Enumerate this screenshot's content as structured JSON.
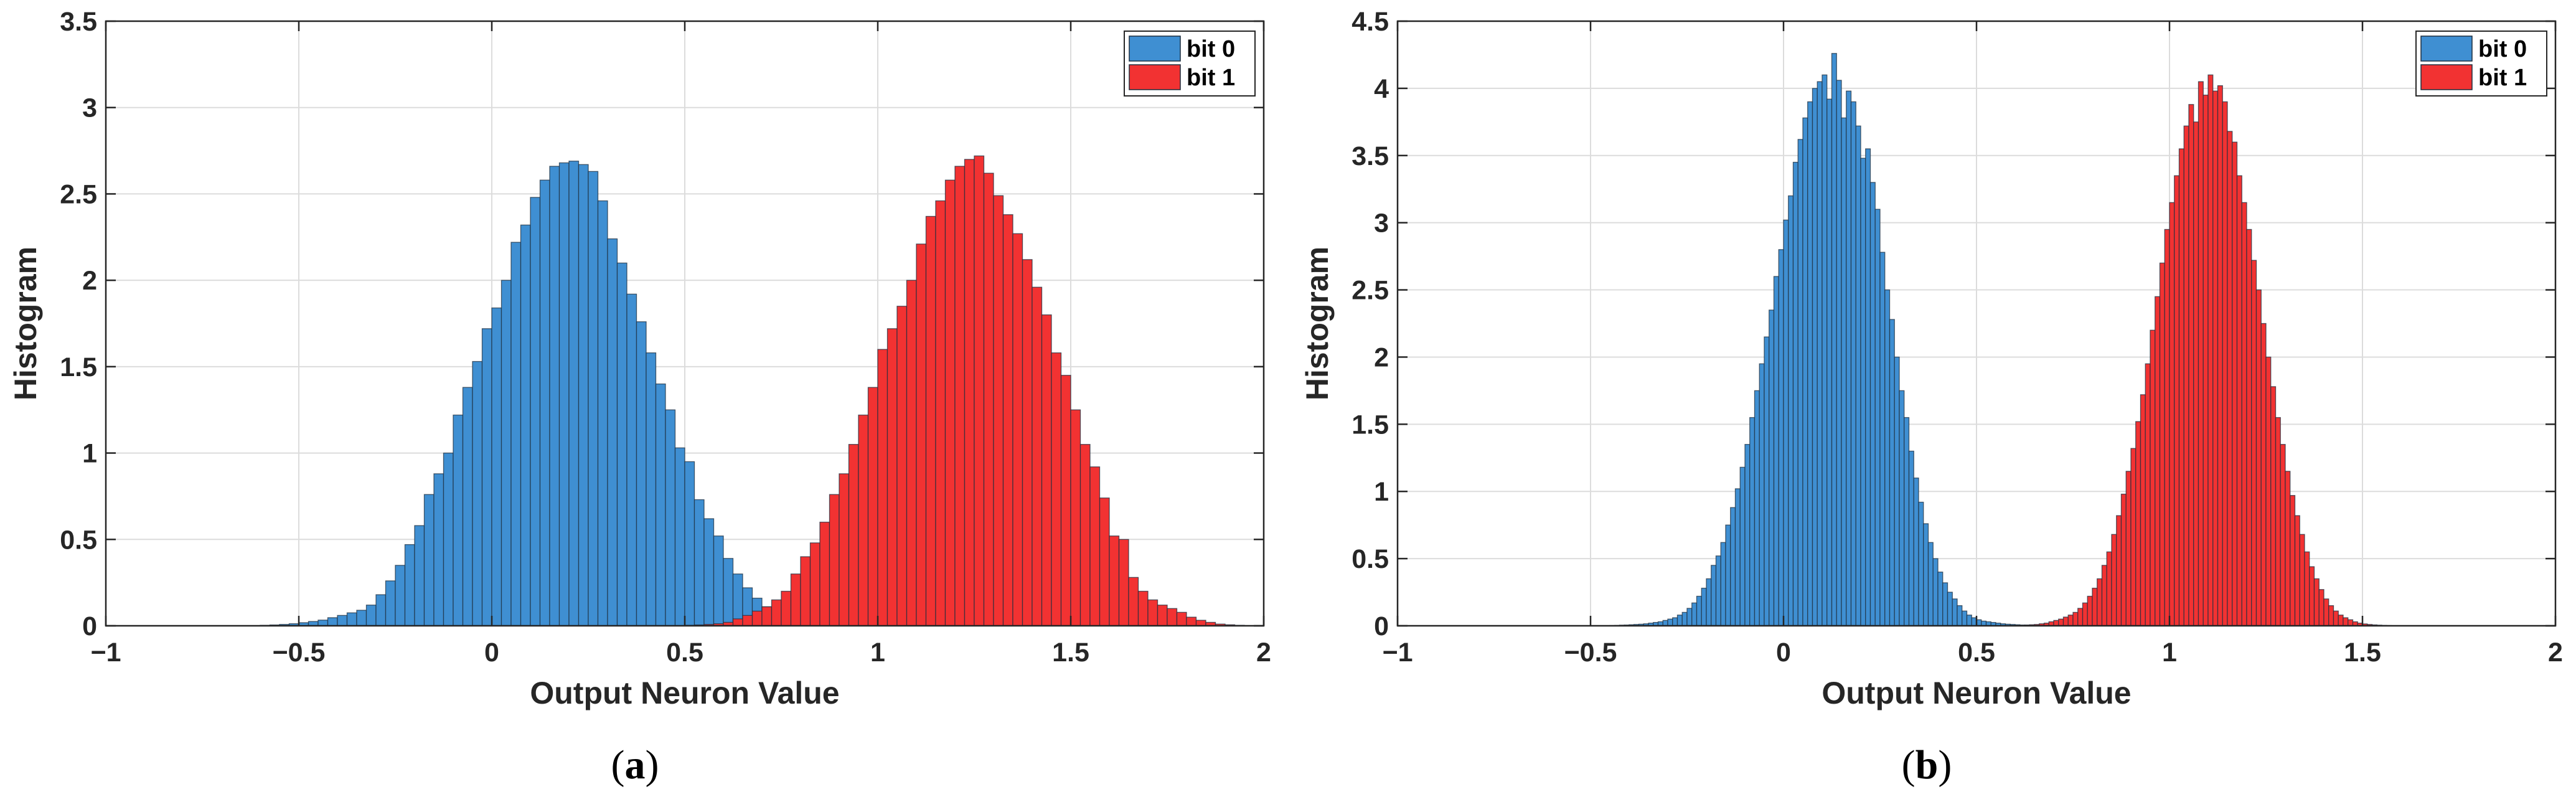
{
  "chart_data": [
    {
      "type": "bar",
      "panel": "a",
      "caption_letter": "a",
      "xlabel": "Output Neuron Value",
      "ylabel": "Histogram",
      "xlim": [
        -1,
        2
      ],
      "ylim": [
        0,
        3.5
      ],
      "xticks": [
        -1,
        -0.5,
        0,
        0.5,
        1,
        1.5,
        2
      ],
      "xtick_labels": [
        "−1",
        "−0.5",
        "0",
        "0.5",
        "1",
        "1.5",
        "2"
      ],
      "yticks": [
        0,
        0.5,
        1,
        1.5,
        2,
        2.5,
        3,
        3.5
      ],
      "ytick_labels": [
        "0",
        "0.5",
        "1",
        "1.5",
        "2",
        "2.5",
        "3",
        "3.5"
      ],
      "grid": true,
      "legend_position": "top-right",
      "bin_width": 0.025,
      "series": [
        {
          "name": "bit 0",
          "color": "#3f8fd2",
          "bin_start": -0.6,
          "values": [
            0.003,
            0.005,
            0.008,
            0.012,
            0.018,
            0.025,
            0.033,
            0.047,
            0.06,
            0.075,
            0.09,
            0.12,
            0.18,
            0.26,
            0.35,
            0.47,
            0.58,
            0.76,
            0.88,
            1.0,
            1.22,
            1.38,
            1.53,
            1.72,
            1.84,
            2.0,
            2.22,
            2.32,
            2.48,
            2.58,
            2.66,
            2.68,
            2.69,
            2.67,
            2.63,
            2.46,
            2.24,
            2.1,
            1.92,
            1.76,
            1.58,
            1.4,
            1.25,
            1.03,
            0.95,
            0.73,
            0.62,
            0.52,
            0.39,
            0.3,
            0.22,
            0.16,
            0.11,
            0.075,
            0.05,
            0.04,
            0.03,
            0.018,
            0.01,
            0.006,
            0.003
          ]
        },
        {
          "name": "bit 1",
          "color": "#f23232",
          "bin_start": 0.5,
          "values": [
            0.003,
            0.005,
            0.008,
            0.012,
            0.02,
            0.04,
            0.06,
            0.085,
            0.11,
            0.15,
            0.2,
            0.3,
            0.4,
            0.48,
            0.6,
            0.76,
            0.88,
            1.05,
            1.22,
            1.38,
            1.6,
            1.72,
            1.85,
            2.0,
            2.21,
            2.37,
            2.46,
            2.58,
            2.66,
            2.7,
            2.72,
            2.62,
            2.49,
            2.38,
            2.27,
            2.12,
            1.96,
            1.8,
            1.58,
            1.45,
            1.25,
            1.05,
            0.92,
            0.74,
            0.52,
            0.5,
            0.28,
            0.2,
            0.15,
            0.12,
            0.1,
            0.078,
            0.05,
            0.032,
            0.02,
            0.01,
            0.006,
            0.003
          ]
        }
      ]
    },
    {
      "type": "bar",
      "panel": "b",
      "caption_letter": "b",
      "xlabel": "Output Neuron Value",
      "ylabel": "Histogram",
      "xlim": [
        -1,
        2
      ],
      "ylim": [
        0,
        4.5
      ],
      "xticks": [
        -1,
        -0.5,
        0,
        0.5,
        1,
        1.5,
        2
      ],
      "xtick_labels": [
        "−1",
        "−0.5",
        "0",
        "0.5",
        "1",
        "1.5",
        "2"
      ],
      "yticks": [
        0,
        0.5,
        1,
        1.5,
        2,
        2.5,
        3,
        3.5,
        4,
        4.5
      ],
      "ytick_labels": [
        "0",
        "0.5",
        "1",
        "1.5",
        "2",
        "2.5",
        "3",
        "3.5",
        "4",
        "4.5"
      ],
      "grid": true,
      "legend_position": "top-right",
      "bin_width": 0.0125,
      "series": [
        {
          "name": "bit 0",
          "color": "#3f8fd2",
          "bin_start": -0.45,
          "values": [
            0.002,
            0.003,
            0.005,
            0.006,
            0.008,
            0.01,
            0.012,
            0.015,
            0.02,
            0.025,
            0.03,
            0.04,
            0.05,
            0.06,
            0.08,
            0.1,
            0.13,
            0.17,
            0.22,
            0.28,
            0.35,
            0.45,
            0.52,
            0.62,
            0.75,
            0.88,
            1.02,
            1.18,
            1.35,
            1.55,
            1.75,
            1.95,
            2.15,
            2.35,
            2.6,
            2.8,
            3.02,
            3.2,
            3.45,
            3.62,
            3.78,
            3.9,
            4.0,
            4.05,
            4.1,
            3.92,
            4.26,
            4.06,
            3.78,
            3.98,
            3.9,
            3.72,
            3.48,
            3.55,
            3.3,
            3.1,
            2.78,
            2.5,
            2.28,
            2.0,
            1.75,
            1.55,
            1.3,
            1.1,
            0.92,
            0.76,
            0.62,
            0.5,
            0.4,
            0.32,
            0.25,
            0.2,
            0.15,
            0.11,
            0.08,
            0.06,
            0.045,
            0.035,
            0.03,
            0.025,
            0.02,
            0.015,
            0.012,
            0.01,
            0.008,
            0.006,
            0.005,
            0.004,
            0.003,
            0.002,
            0.002,
            0.001,
            0.001
          ]
        },
        {
          "name": "bit 1",
          "color": "#f23232",
          "bin_start": 0.6,
          "values": [
            0.002,
            0.004,
            0.006,
            0.008,
            0.01,
            0.015,
            0.02,
            0.03,
            0.04,
            0.05,
            0.065,
            0.08,
            0.1,
            0.13,
            0.17,
            0.22,
            0.28,
            0.35,
            0.45,
            0.55,
            0.68,
            0.82,
            0.98,
            1.15,
            1.32,
            1.52,
            1.72,
            1.95,
            2.2,
            2.45,
            2.7,
            2.95,
            3.15,
            3.35,
            3.55,
            3.72,
            3.88,
            3.75,
            4.05,
            3.95,
            4.1,
            3.98,
            4.02,
            3.9,
            3.68,
            3.6,
            3.35,
            3.15,
            2.95,
            2.72,
            2.5,
            2.25,
            2.0,
            1.78,
            1.55,
            1.35,
            1.15,
            0.97,
            0.82,
            0.68,
            0.55,
            0.44,
            0.35,
            0.27,
            0.2,
            0.15,
            0.11,
            0.08,
            0.06,
            0.045,
            0.03,
            0.02,
            0.014,
            0.01,
            0.007,
            0.005,
            0.003,
            0.002
          ]
        }
      ]
    }
  ]
}
